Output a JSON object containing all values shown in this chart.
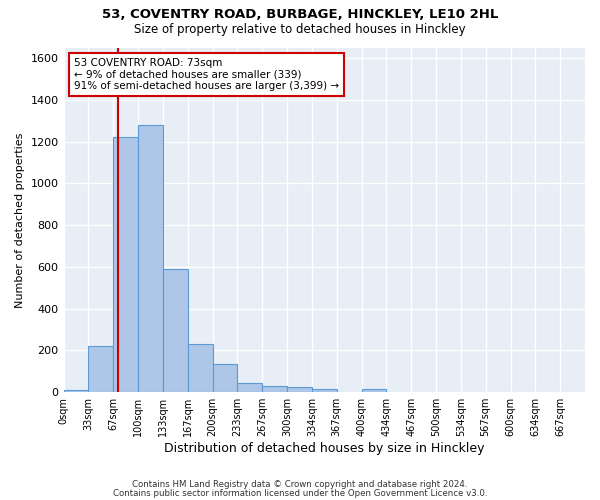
{
  "title_line1": "53, COVENTRY ROAD, BURBAGE, HINCKLEY, LE10 2HL",
  "title_line2": "Size of property relative to detached houses in Hinckley",
  "xlabel": "Distribution of detached houses by size in Hinckley",
  "ylabel": "Number of detached properties",
  "bar_color": "#aec6e8",
  "bar_edge_color": "#5b9bd5",
  "background_color": "#e8eef6",
  "grid_color": "#ffffff",
  "bin_labels": [
    "0sqm",
    "33sqm",
    "67sqm",
    "100sqm",
    "133sqm",
    "167sqm",
    "200sqm",
    "233sqm",
    "267sqm",
    "300sqm",
    "334sqm",
    "367sqm",
    "400sqm",
    "434sqm",
    "467sqm",
    "500sqm",
    "534sqm",
    "567sqm",
    "600sqm",
    "634sqm",
    "667sqm"
  ],
  "bar_values": [
    10,
    220,
    1220,
    1280,
    590,
    230,
    135,
    45,
    30,
    25,
    15,
    0,
    15,
    0,
    0,
    0,
    0,
    0,
    0,
    0,
    0
  ],
  "ylim": [
    0,
    1650
  ],
  "yticks": [
    0,
    200,
    400,
    600,
    800,
    1000,
    1200,
    1400,
    1600
  ],
  "property_bin_index": 2,
  "annotation_text": "53 COVENTRY ROAD: 73sqm\n← 9% of detached houses are smaller (339)\n91% of semi-detached houses are larger (3,399) →",
  "annotation_box_color": "#ffffff",
  "annotation_box_edge_color": "#cc0000",
  "vline_color": "#cc0000",
  "footer_line1": "Contains HM Land Registry data © Crown copyright and database right 2024.",
  "footer_line2": "Contains public sector information licensed under the Open Government Licence v3.0."
}
